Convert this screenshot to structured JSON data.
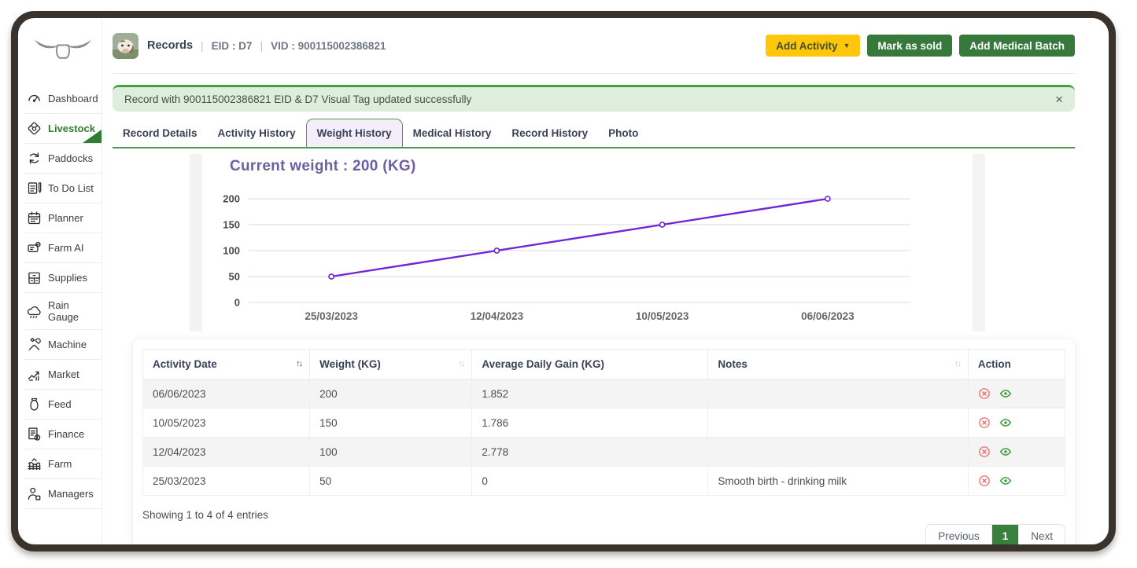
{
  "colors": {
    "frame": "#3a322c",
    "accent_green": "#37793b",
    "active_green": "#2e7d32",
    "tab_underline": "#4c9a50",
    "button_yellow": "#ffc60b",
    "alert_bg": "#ddeedd",
    "alert_border": "#43a047",
    "tab_active_bg": "#f3eefa",
    "chart_title_purple": "#6d5fa0",
    "chart_line_purple": "#7126d6",
    "delete_red": "#e66a6a",
    "view_green": "#3f9d44",
    "pagination_active": "#38803c"
  },
  "sidebar": {
    "items": [
      {
        "label": "Dashboard",
        "icon": "dashboard-icon",
        "active": false
      },
      {
        "label": "Livestock",
        "icon": "livestock-icon",
        "active": true
      },
      {
        "label": "Paddocks",
        "icon": "paddocks-icon",
        "active": false
      },
      {
        "label": "To Do List",
        "icon": "todo-list-icon",
        "active": false
      },
      {
        "label": "Planner",
        "icon": "planner-icon",
        "active": false
      },
      {
        "label": "Farm AI",
        "icon": "farm-ai-icon",
        "active": false
      },
      {
        "label": "Supplies",
        "icon": "supplies-icon",
        "active": false
      },
      {
        "label": "Rain Gauge",
        "icon": "rain-gauge-icon",
        "active": false
      },
      {
        "label": "Machine",
        "icon": "machine-icon",
        "active": false
      },
      {
        "label": "Market",
        "icon": "market-icon",
        "active": false
      },
      {
        "label": "Feed",
        "icon": "feed-icon",
        "active": false
      },
      {
        "label": "Finance",
        "icon": "finance-icon",
        "active": false
      },
      {
        "label": "Farm",
        "icon": "farm-icon",
        "active": false
      },
      {
        "label": "Managers",
        "icon": "managers-icon",
        "active": false
      }
    ]
  },
  "header": {
    "records_label": "Records",
    "separator": "|",
    "eid": "EID : D7",
    "vid": "VID : 900115002386821",
    "buttons": {
      "add_activity": "Add Activity",
      "add_activity_caret": "▼",
      "mark_as_sold": "Mark as sold",
      "add_medical_batch": "Add Medical Batch"
    }
  },
  "alert": {
    "message": "Record with 900115002386821 EID & D7 Visual Tag updated successfully",
    "close": "×"
  },
  "tabs": [
    {
      "label": "Record Details",
      "active": false
    },
    {
      "label": "Activity History",
      "active": false
    },
    {
      "label": "Weight History",
      "active": true
    },
    {
      "label": "Medical History",
      "active": false
    },
    {
      "label": "Record History",
      "active": false
    },
    {
      "label": "Photo",
      "active": false
    }
  ],
  "chart_data": {
    "type": "line",
    "title": "Current weight : 200 (KG)",
    "categories": [
      "25/03/2023",
      "12/04/2023",
      "10/05/2023",
      "06/06/2023"
    ],
    "values": [
      50,
      100,
      150,
      200
    ],
    "yticks": [
      0,
      50,
      100,
      150,
      200
    ],
    "ylim": [
      0,
      200
    ],
    "xlabel": "",
    "ylabel": "",
    "grid": true,
    "legend": false,
    "line_color": "#7126d6",
    "marker": "open-circle"
  },
  "table": {
    "columns": [
      {
        "label": "Activity Date",
        "sort": "active"
      },
      {
        "label": "Weight (KG)",
        "sort": "inactive"
      },
      {
        "label": "Average Daily Gain (KG)",
        "sort": "none"
      },
      {
        "label": "Notes",
        "sort": "inactive"
      },
      {
        "label": "Action",
        "sort": "none"
      }
    ],
    "sort_glyph": "↑↓",
    "rows": [
      {
        "date": "06/06/2023",
        "weight": "200",
        "adg": "1.852",
        "notes": ""
      },
      {
        "date": "10/05/2023",
        "weight": "150",
        "adg": "1.786",
        "notes": ""
      },
      {
        "date": "12/04/2023",
        "weight": "100",
        "adg": "2.778",
        "notes": ""
      },
      {
        "date": "25/03/2023",
        "weight": "50",
        "adg": "0",
        "notes": "Smooth birth - drinking milk"
      }
    ],
    "tooltip": "View Record"
  },
  "footer": {
    "showing": "Showing 1 to 4 of 4 entries",
    "pagination": {
      "previous": "Previous",
      "page": "1",
      "next": "Next"
    }
  }
}
